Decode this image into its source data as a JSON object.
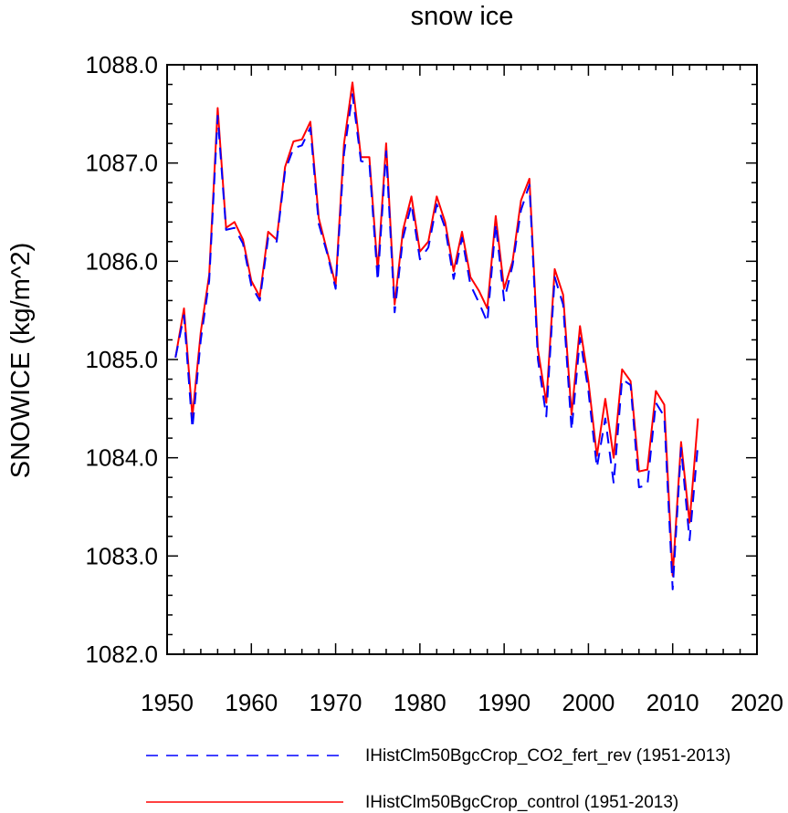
{
  "chart_data": {
    "type": "line",
    "title": "snow ice",
    "ylabel": "SNOWICE  (kg/m^2)",
    "xlabel": "",
    "xlim": [
      1950,
      2020
    ],
    "ylim": [
      1082.0,
      1088.0
    ],
    "xticks": [
      1950,
      1960,
      1970,
      1980,
      1990,
      2000,
      2010,
      2020
    ],
    "yticks": [
      1082.0,
      1083.0,
      1084.0,
      1085.0,
      1086.0,
      1087.0,
      1088.0
    ],
    "xtick_labels": [
      "1950",
      "1960",
      "1970",
      "1980",
      "1990",
      "2000",
      "2010",
      "2020"
    ],
    "ytick_labels": [
      "1082.0",
      "1083.0",
      "1084.0",
      "1085.0",
      "1086.0",
      "1087.0",
      "1088.0"
    ],
    "grid": false,
    "legend_position": "bottom",
    "x": [
      1951,
      1952,
      1953,
      1954,
      1955,
      1956,
      1957,
      1958,
      1959,
      1960,
      1961,
      1962,
      1963,
      1964,
      1965,
      1966,
      1967,
      1968,
      1969,
      1970,
      1971,
      1972,
      1973,
      1974,
      1975,
      1976,
      1977,
      1978,
      1979,
      1980,
      1981,
      1982,
      1983,
      1984,
      1985,
      1986,
      1987,
      1988,
      1989,
      1990,
      1991,
      1992,
      1993,
      1994,
      1995,
      1996,
      1997,
      1998,
      1999,
      2000,
      2001,
      2002,
      2003,
      2004,
      2005,
      2006,
      2007,
      2008,
      2009,
      2010,
      2011,
      2012,
      2013
    ],
    "series": [
      {
        "name": "IHistClm50BgcCrop_CO2_fert_rev (1951-2013)",
        "color": "#0000ff",
        "style": "dashed",
        "values": [
          1085.02,
          1085.45,
          1084.3,
          1085.2,
          1085.8,
          1087.48,
          1086.32,
          1086.34,
          1086.18,
          1085.75,
          1085.6,
          1086.24,
          1086.2,
          1086.92,
          1087.15,
          1087.18,
          1087.36,
          1086.38,
          1086.08,
          1085.72,
          1087.1,
          1087.7,
          1087.02,
          1087.0,
          1085.8,
          1087.12,
          1085.48,
          1086.24,
          1086.58,
          1086.02,
          1086.14,
          1086.58,
          1086.34,
          1085.82,
          1086.24,
          1085.76,
          1085.58,
          1085.38,
          1086.38,
          1085.6,
          1085.96,
          1086.52,
          1086.78,
          1085.0,
          1084.42,
          1085.84,
          1085.56,
          1084.28,
          1085.22,
          1084.68,
          1083.9,
          1084.4,
          1083.74,
          1084.8,
          1084.74,
          1083.7,
          1083.72,
          1084.56,
          1084.42,
          1082.66,
          1084.1,
          1083.16,
          1084.14
        ]
      },
      {
        "name": "IHistClm50BgcCrop_control (1951-2013)",
        "color": "#ff0000",
        "style": "solid",
        "values": [
          1085.02,
          1085.52,
          1084.42,
          1085.28,
          1085.86,
          1087.56,
          1086.34,
          1086.4,
          1086.22,
          1085.8,
          1085.64,
          1086.3,
          1086.22,
          1086.96,
          1087.22,
          1087.24,
          1087.42,
          1086.44,
          1086.1,
          1085.76,
          1087.2,
          1087.82,
          1087.06,
          1087.06,
          1085.9,
          1087.2,
          1085.56,
          1086.32,
          1086.66,
          1086.1,
          1086.2,
          1086.66,
          1086.4,
          1085.9,
          1086.3,
          1085.84,
          1085.7,
          1085.52,
          1086.46,
          1085.72,
          1086.0,
          1086.62,
          1086.84,
          1085.1,
          1084.56,
          1085.92,
          1085.66,
          1084.44,
          1085.34,
          1084.78,
          1084.02,
          1084.6,
          1084.0,
          1084.9,
          1084.78,
          1083.86,
          1083.88,
          1084.68,
          1084.54,
          1082.8,
          1084.16,
          1083.34,
          1084.4
        ]
      }
    ]
  }
}
